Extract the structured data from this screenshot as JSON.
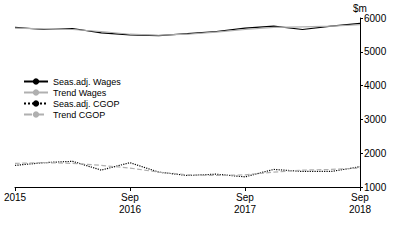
{
  "chart_data": {
    "type": "line",
    "y_label": "$m",
    "categories": [
      "2015",
      null,
      null,
      null,
      "Sep\n2016",
      null,
      null,
      null,
      "Sep\n2017",
      null,
      null,
      null,
      "Sep\n2018"
    ],
    "series": [
      {
        "name": "Seas.adj. Wages",
        "color": "#000000",
        "line_style": "solid",
        "values": [
          5720,
          5660,
          5690,
          5560,
          5500,
          5480,
          5540,
          5600,
          5700,
          5760,
          5660,
          5760,
          5840
        ]
      },
      {
        "name": "Trend Wages",
        "color": "#b0b0b0",
        "line_style": "solid",
        "values": [
          5700,
          5680,
          5660,
          5600,
          5520,
          5490,
          5520,
          5580,
          5660,
          5720,
          5740,
          5760,
          5800
        ]
      },
      {
        "name": "Seas.adj. CGOP",
        "color": "#000000",
        "line_style": "dotted",
        "values": [
          1640,
          1720,
          1760,
          1500,
          1720,
          1440,
          1340,
          1380,
          1300,
          1520,
          1460,
          1460,
          1600
        ]
      },
      {
        "name": "Trend CGOP",
        "color": "#b0b0b0",
        "line_style": "dashed",
        "values": [
          1700,
          1720,
          1700,
          1640,
          1560,
          1440,
          1360,
          1340,
          1360,
          1440,
          1500,
          1520,
          1560
        ]
      }
    ],
    "ylim": [
      1000,
      6000
    ],
    "yticks": [
      1000,
      2000,
      3000,
      4000,
      5000,
      6000
    ],
    "grid": false,
    "legend": "top-left"
  }
}
